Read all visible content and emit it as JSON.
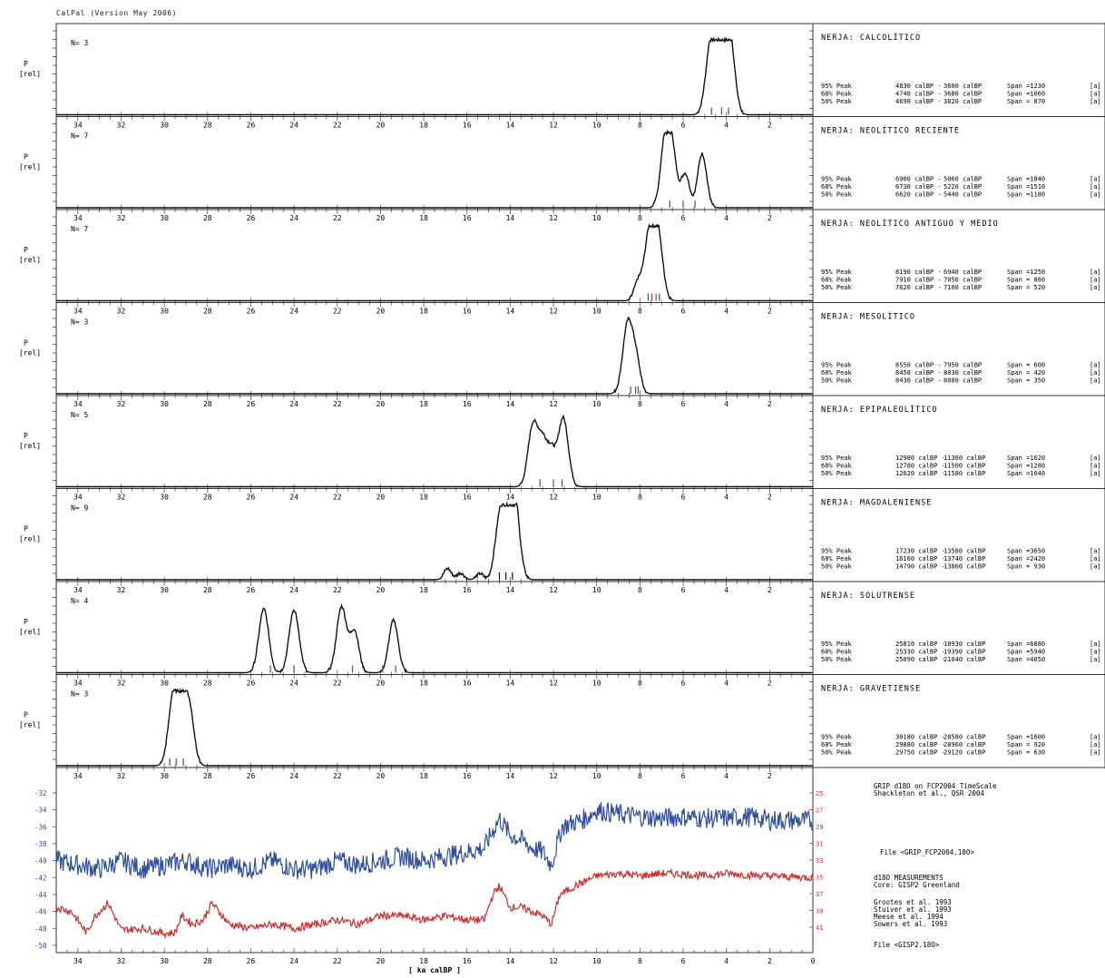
{
  "header": "CalPal (Version May 2006)",
  "x_axis_label": "[ ka calBP ]",
  "x_ticks": [
    "34",
    "32",
    "30",
    "28",
    "26",
    "24",
    "22",
    "20",
    "18",
    "16",
    "14",
    "12",
    "10",
    "8",
    "6",
    "4",
    "2"
  ],
  "ylabel_p": "P",
  "ylabel_rel": "[rel]",
  "colors": {
    "blue": "#2e4ea0",
    "red": "#d42b2b",
    "black": "#111111"
  },
  "chart_data": [
    {
      "type": "line",
      "title": "NERJA: CALCOLÍTICO",
      "n": "N= 3",
      "peaks": [
        [
          4.7,
          1.0
        ],
        [
          4.2,
          0.96
        ],
        [
          3.85,
          0.95
        ]
      ],
      "ranges": [
        [
          "95% Peak",
          "4830 calBP -",
          "3600 calBP",
          "Span =1230",
          "[a]"
        ],
        [
          "68% Peak",
          "4740 calBP -",
          "3680 calBP",
          "Span =1060",
          "[a]"
        ],
        [
          "50% Peak",
          "4690 calBP -",
          "3820 calBP",
          "Span = 870",
          "[a]"
        ]
      ],
      "ticks": [
        {
          "x": 4.69,
          "c": "blue"
        },
        {
          "x": 4.22,
          "c": "red"
        },
        {
          "x": 3.9,
          "c": "blue"
        }
      ]
    },
    {
      "type": "line",
      "title": "NERJA: NEOLÍTICO RECIENTE",
      "n": "N= 7",
      "peaks": [
        [
          6.9,
          0.5
        ],
        [
          6.6,
          1.0
        ],
        [
          5.9,
          0.45
        ],
        [
          5.2,
          0.38
        ],
        [
          5.05,
          0.4
        ]
      ],
      "ranges": [
        [
          "95% Peak",
          "6900 calBP -",
          "5060 calBP",
          "Span =1840",
          "[a]"
        ],
        [
          "68% Peak",
          "6730 calBP -",
          "5220 calBP",
          "Span =1510",
          "[a]"
        ],
        [
          "50% Peak",
          "6620 calBP -",
          "5440 calBP",
          "Span =1180",
          "[a]"
        ]
      ],
      "ticks": [
        {
          "x": 6.62,
          "c": "blue"
        },
        {
          "x": 6.0,
          "c": "red"
        },
        {
          "x": 5.45,
          "c": "blue"
        }
      ]
    },
    {
      "type": "line",
      "title": "NERJA: NEOLÍTICO ANTIGUO Y MEDIO",
      "n": "N= 7",
      "peaks": [
        [
          8.1,
          0.24
        ],
        [
          7.6,
          0.76
        ],
        [
          7.2,
          0.96
        ]
      ],
      "ranges": [
        [
          "95% Peak",
          "8190 calBP -",
          "6940 calBP",
          "Span =1250",
          "[a]"
        ],
        [
          "68% Peak",
          "7910 calBP -",
          "7050 calBP",
          "Span = 860",
          "[a]"
        ],
        [
          "50% Peak",
          "7620 calBP -",
          "7100 calBP",
          "Span = 520",
          "[a]"
        ]
      ],
      "ticks": [
        {
          "x": 7.62,
          "c": "blue"
        },
        {
          "x": 7.45,
          "c": "red"
        },
        {
          "x": 7.25,
          "c": "red"
        },
        {
          "x": 7.1,
          "c": "blue"
        }
      ]
    },
    {
      "type": "line",
      "title": "NERJA: MESOLÍTICO",
      "n": "N= 3",
      "peaks": [
        [
          8.55,
          0.96
        ],
        [
          8.15,
          0.36
        ]
      ],
      "ranges": [
        [
          "95% Peak",
          "8550 calBP -",
          "7950 calBP",
          "Span = 600",
          "[a]"
        ],
        [
          "68% Peak",
          "8450 calBP -",
          "8030 calBP",
          "Span = 420",
          "[a]"
        ],
        [
          "50% Peak",
          "8430 calBP -",
          "8080 calBP",
          "Span = 350",
          "[a]"
        ]
      ],
      "ticks": [
        {
          "x": 8.43,
          "c": "blue"
        },
        {
          "x": 8.2,
          "c": "red"
        },
        {
          "x": 8.08,
          "c": "blue"
        }
      ]
    },
    {
      "type": "line",
      "title": "NERJA: EPIPALEOLÍTICO",
      "n": "N= 5",
      "peaks": [
        [
          12.95,
          0.82
        ],
        [
          12.5,
          0.56
        ],
        [
          12.1,
          0.44
        ],
        [
          11.55,
          0.92
        ]
      ],
      "ranges": [
        [
          "95% Peak",
          "12980 calBP -",
          "11360 calBP",
          "Span =1620",
          "[a]"
        ],
        [
          "68% Peak",
          "12780 calBP -",
          "11500 calBP",
          "Span =1280",
          "[a]"
        ],
        [
          "50% Peak",
          "12620 calBP -",
          "11580 calBP",
          "Span =1040",
          "[a]"
        ]
      ],
      "ticks": [
        {
          "x": 12.62,
          "c": "blue"
        },
        {
          "x": 12.0,
          "c": "red"
        },
        {
          "x": 11.6,
          "c": "blue"
        }
      ]
    },
    {
      "type": "line",
      "title": "NERJA: MAGDALENIENSE",
      "n": "N= 9",
      "peaks": [
        [
          16.9,
          0.15
        ],
        [
          16.3,
          0.09
        ],
        [
          15.4,
          0.08
        ],
        [
          14.5,
          0.72
        ],
        [
          14.1,
          0.9
        ],
        [
          13.8,
          0.95
        ]
      ],
      "ranges": [
        [
          "95% Peak",
          "17230 calBP -",
          "13580 calBP",
          "Span =3650",
          "[a]"
        ],
        [
          "68% Peak",
          "16160 calBP -",
          "13740 calBP",
          "Span =2420",
          "[a]"
        ],
        [
          "50% Peak",
          "14790 calBP -",
          "13860 calBP",
          "Span = 930",
          "[a]"
        ]
      ],
      "ticks": [
        {
          "x": 14.5,
          "c": "black"
        },
        {
          "x": 14.2,
          "c": "black"
        },
        {
          "x": 13.9,
          "c": "black"
        }
      ]
    },
    {
      "type": "line",
      "title": "NERJA: SOLUTRENSE",
      "n": "N= 4",
      "peaks": [
        [
          25.4,
          0.85
        ],
        [
          24.0,
          0.84
        ],
        [
          21.8,
          0.88
        ],
        [
          21.2,
          0.55
        ],
        [
          19.4,
          0.7
        ]
      ],
      "ranges": [
        [
          "95% Peak",
          "25810 calBP -",
          "18930 calBP",
          "Span =6880",
          "[a]"
        ],
        [
          "68% Peak",
          "25330 calBP -",
          "19390 calBP",
          "Span =5940",
          "[a]"
        ],
        [
          "50% Peak",
          "25090 calBP -",
          "21040 calBP",
          "Span =4050",
          "[a]"
        ]
      ],
      "ticks": [
        {
          "x": 25.09,
          "c": "blue"
        },
        {
          "x": 24.0,
          "c": "blue"
        },
        {
          "x": 21.3,
          "c": "red"
        },
        {
          "x": 19.9,
          "c": "blue"
        },
        {
          "x": 19.3,
          "c": "red"
        }
      ]
    },
    {
      "type": "line",
      "title": "NERJA: GRAVETIENSE",
      "n": "N= 3",
      "peaks": [
        [
          29.6,
          0.82
        ],
        [
          29.2,
          0.95
        ],
        [
          28.8,
          0.6
        ]
      ],
      "ranges": [
        [
          "95% Peak",
          "30180 calBP -",
          "28580 calBP",
          "Span =1600",
          "[a]"
        ],
        [
          "68% Peak",
          "29880 calBP -",
          "28960 calBP",
          "Span = 920",
          "[a]"
        ],
        [
          "50% Peak",
          "29750 calBP -",
          "29120 calBP",
          "Span = 630",
          "[a]"
        ]
      ],
      "ticks": [
        {
          "x": 29.75,
          "c": "blue"
        },
        {
          "x": 29.45,
          "c": "red"
        },
        {
          "x": 29.12,
          "c": "blue"
        }
      ]
    },
    {
      "type": "line",
      "title": "GRIP d18O on FCP2004 TimeScale",
      "subtitle": "Shackleton et al., QSR 2004",
      "file1": "File <GRIP_FCP2004.18O>",
      "measure_title": "d18O MEASUREMENTS",
      "core": "Core: GISP2 Greenland",
      "refs": [
        "Grootes et al. 1993",
        "Stuiver et al. 1993",
        "Meese et al. 1994",
        "Sowers et al. 1993"
      ],
      "file2": "File <GISP2.18O>",
      "yticks_left": [
        "-32",
        "-34",
        "-36",
        "-38",
        "-40",
        "-42",
        "-44",
        "-46",
        "-48",
        "-50"
      ],
      "yticks_right": [
        "25",
        "27",
        "29",
        "31",
        "33",
        "35",
        "37",
        "39",
        "41"
      ],
      "x_last_tick": "0",
      "blue_series": [
        [
          35,
          -40
        ],
        [
          34,
          -40.5
        ],
        [
          33,
          -41
        ],
        [
          32,
          -40
        ],
        [
          31,
          -41
        ],
        [
          30,
          -40.5
        ],
        [
          29,
          -40
        ],
        [
          28,
          -41
        ],
        [
          27,
          -40.5
        ],
        [
          26,
          -41
        ],
        [
          25,
          -40
        ],
        [
          24,
          -41
        ],
        [
          23,
          -41
        ],
        [
          22,
          -40
        ],
        [
          21,
          -40.5
        ],
        [
          20,
          -40
        ],
        [
          19,
          -39.5
        ],
        [
          18,
          -40
        ],
        [
          17,
          -39.5
        ],
        [
          16,
          -39
        ],
        [
          15.2,
          -38.5
        ],
        [
          14.7,
          -36
        ],
        [
          14.5,
          -35
        ],
        [
          14,
          -37
        ],
        [
          13.5,
          -37.5
        ],
        [
          13,
          -38.5
        ],
        [
          12.5,
          -39
        ],
        [
          12.1,
          -40.5
        ],
        [
          11.6,
          -36
        ],
        [
          11.2,
          -35.6
        ],
        [
          10.5,
          -35
        ],
        [
          10,
          -34
        ],
        [
          9,
          -34.5
        ],
        [
          8,
          -34.8
        ],
        [
          7,
          -35
        ],
        [
          6,
          -34.8
        ],
        [
          5,
          -35
        ],
        [
          4,
          -35
        ],
        [
          3,
          -34.8
        ],
        [
          2,
          -35.2
        ],
        [
          0,
          -35.3
        ]
      ],
      "red_series": [
        [
          35,
          -45.5
        ],
        [
          34.3,
          -46
        ],
        [
          33.6,
          -48.5
        ],
        [
          33.2,
          -46.5
        ],
        [
          32.6,
          -45
        ],
        [
          32,
          -48.2
        ],
        [
          31,
          -48
        ],
        [
          30,
          -48.6
        ],
        [
          29.5,
          -48.5
        ],
        [
          29.2,
          -46.5
        ],
        [
          28.7,
          -47.5
        ],
        [
          28.2,
          -47
        ],
        [
          27.8,
          -45
        ],
        [
          27,
          -47.5
        ],
        [
          26,
          -48
        ],
        [
          25,
          -47.5
        ],
        [
          24,
          -48
        ],
        [
          23,
          -47.5
        ],
        [
          22,
          -47
        ],
        [
          21,
          -47.5
        ],
        [
          20,
          -46.5
        ],
        [
          19,
          -46.5
        ],
        [
          18,
          -47
        ],
        [
          17,
          -46.5
        ],
        [
          16,
          -47
        ],
        [
          15.2,
          -47
        ],
        [
          14.8,
          -44
        ],
        [
          14.5,
          -43
        ],
        [
          14,
          -45.5
        ],
        [
          13.5,
          -45.5
        ],
        [
          13,
          -46
        ],
        [
          12.5,
          -46.5
        ],
        [
          12.1,
          -47.5
        ],
        [
          11.7,
          -44
        ],
        [
          11,
          -43
        ],
        [
          10,
          -41.8
        ],
        [
          9,
          -41.5
        ],
        [
          8,
          -41.8
        ],
        [
          7,
          -41.5
        ],
        [
          6,
          -41.6
        ],
        [
          5,
          -41.8
        ],
        [
          4,
          -41.5
        ],
        [
          3,
          -41.7
        ],
        [
          2,
          -41.8
        ],
        [
          0,
          -42
        ]
      ]
    }
  ]
}
